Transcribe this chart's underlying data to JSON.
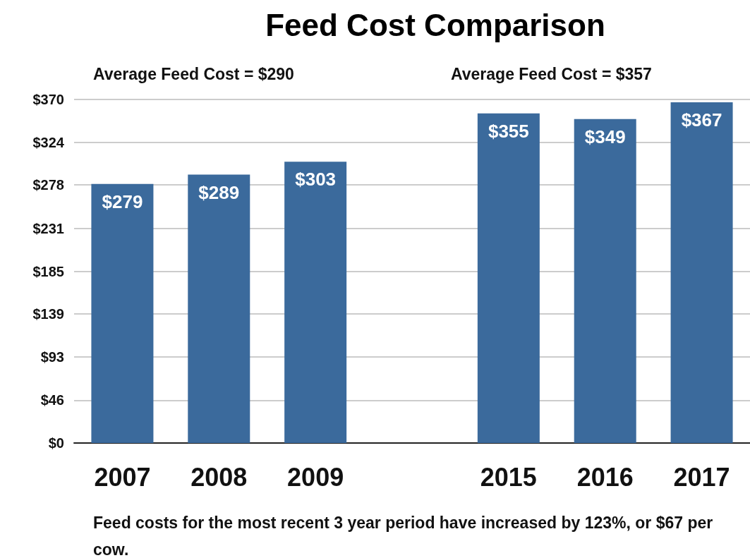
{
  "chart_data": {
    "type": "bar",
    "title": "Feed Cost Comparison",
    "categories": [
      "2007",
      "2008",
      "2009",
      null,
      "2015",
      "2016",
      "2017"
    ],
    "values": [
      279,
      289,
      303,
      null,
      355,
      349,
      367
    ],
    "value_labels": [
      "$279",
      "$289",
      "$303",
      null,
      "$355",
      "$349",
      "$367"
    ],
    "color": "#3b6a9c",
    "ylim": [
      0,
      370
    ],
    "yticks": [
      {
        "value": 0,
        "label": "$0"
      },
      {
        "value": 46,
        "label": "$46"
      },
      {
        "value": 93,
        "label": "$93"
      },
      {
        "value": 139,
        "label": "$139"
      },
      {
        "value": 185,
        "label": "$185"
      },
      {
        "value": 231,
        "label": "$231"
      },
      {
        "value": 278,
        "label": "$278"
      },
      {
        "value": 324,
        "label": "$324"
      },
      {
        "value": 370,
        "label": "$370"
      }
    ],
    "grid": "y",
    "annotations": [
      "Average Feed Cost = $290",
      "Average Feed Cost = $357",
      "Feed costs for the most recent 3 year period have increased by 123%, or $67 per cow."
    ]
  }
}
